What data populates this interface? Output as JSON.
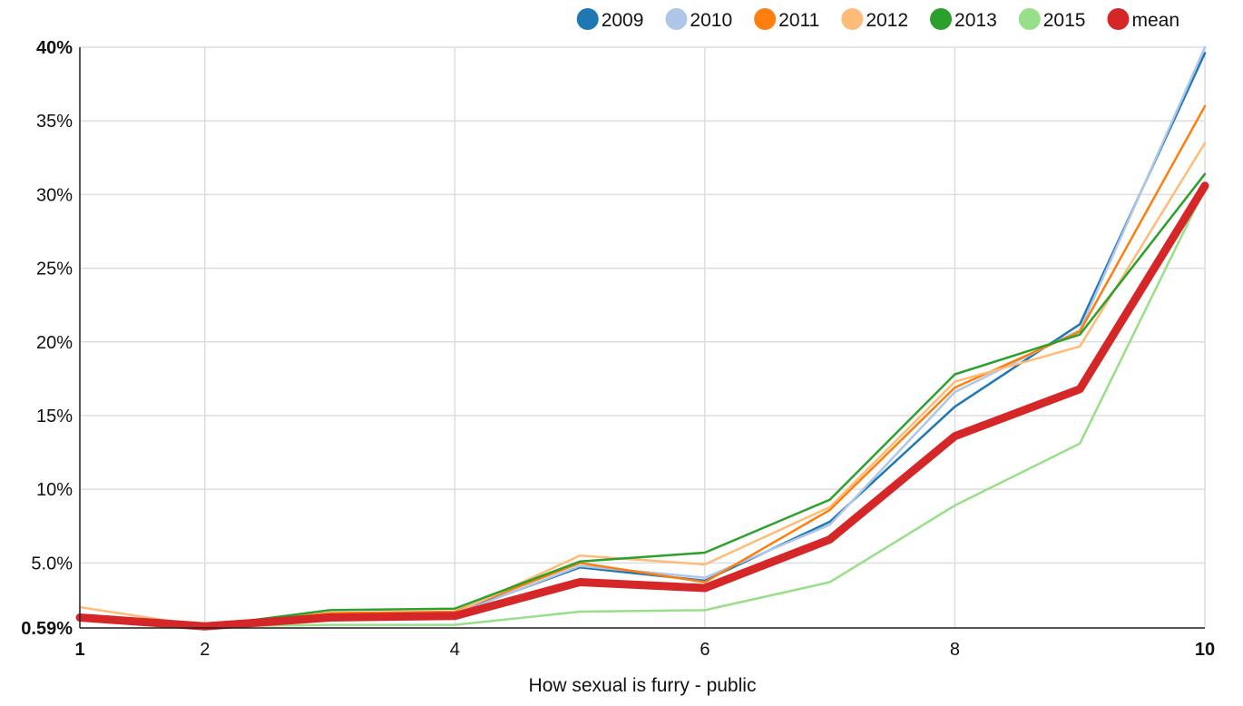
{
  "chart_data": {
    "type": "line",
    "xlabel": "How sexual is furry - public",
    "ylabel": "",
    "x": [
      1,
      2,
      3,
      4,
      5,
      6,
      7,
      8,
      9,
      10
    ],
    "xlim": [
      1,
      10
    ],
    "ylim": [
      0.59,
      40
    ],
    "x_ticks": [
      {
        "value": 1,
        "label": "1",
        "bold": true
      },
      {
        "value": 2,
        "label": "2",
        "bold": false
      },
      {
        "value": 4,
        "label": "4",
        "bold": false
      },
      {
        "value": 6,
        "label": "6",
        "bold": false
      },
      {
        "value": 8,
        "label": "8",
        "bold": false
      },
      {
        "value": 10,
        "label": "10",
        "bold": true
      }
    ],
    "y_ticks": [
      {
        "value": 0.59,
        "label": "0.59%",
        "bold": true
      },
      {
        "value": 5,
        "label": "5.0%",
        "bold": false
      },
      {
        "value": 10,
        "label": "10%",
        "bold": false
      },
      {
        "value": 15,
        "label": "15%",
        "bold": false
      },
      {
        "value": 20,
        "label": "20%",
        "bold": false
      },
      {
        "value": 25,
        "label": "25%",
        "bold": false
      },
      {
        "value": 30,
        "label": "30%",
        "bold": false
      },
      {
        "value": 35,
        "label": "35%",
        "bold": false
      },
      {
        "value": 40,
        "label": "40%",
        "bold": true
      }
    ],
    "grid": true,
    "legend_position": "top-right",
    "series": [
      {
        "name": "2009",
        "color": "#1f77b4",
        "width": 2.5,
        "values": [
          1.3,
          0.8,
          1.4,
          1.6,
          4.7,
          3.8,
          7.8,
          15.6,
          21.2,
          39.6
        ]
      },
      {
        "name": "2010",
        "color": "#aec7e8",
        "width": 2.5,
        "values": [
          1.3,
          0.8,
          1.3,
          1.5,
          4.8,
          4.0,
          7.6,
          16.6,
          20.8,
          40.0
        ]
      },
      {
        "name": "2011",
        "color": "#ff7f0e",
        "width": 2.5,
        "values": [
          1.3,
          0.7,
          1.6,
          1.7,
          5.0,
          3.7,
          8.6,
          16.9,
          20.7,
          36.0
        ]
      },
      {
        "name": "2012",
        "color": "#ffbb78",
        "width": 2.5,
        "values": [
          2.0,
          0.7,
          1.4,
          1.6,
          5.5,
          4.9,
          8.8,
          17.3,
          19.7,
          33.5
        ]
      },
      {
        "name": "2013",
        "color": "#2ca02c",
        "width": 2.5,
        "values": [
          1.3,
          0.7,
          1.8,
          1.9,
          5.1,
          5.7,
          9.3,
          17.8,
          20.5,
          31.4
        ]
      },
      {
        "name": "2015",
        "color": "#98df8a",
        "width": 2.5,
        "values": [
          1.3,
          0.7,
          0.8,
          0.8,
          1.7,
          1.8,
          3.7,
          8.9,
          13.1,
          30.4
        ]
      },
      {
        "name": "mean",
        "color": "#d62728",
        "width": 9,
        "values": [
          1.3,
          0.7,
          1.3,
          1.4,
          3.7,
          3.3,
          6.6,
          13.6,
          16.8,
          30.6
        ]
      }
    ]
  }
}
